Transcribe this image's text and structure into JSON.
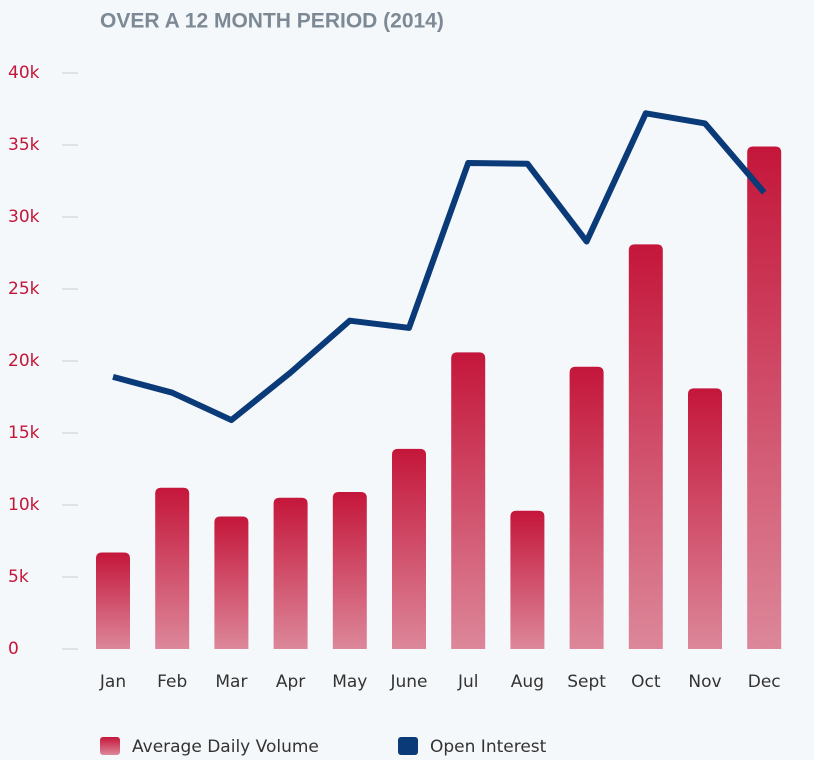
{
  "chart_data": {
    "type": "bar_line",
    "title": "OVER A 12 MONTH PERIOD (2014)",
    "categories": [
      "Jan",
      "Feb",
      "Mar",
      "Apr",
      "May",
      "June",
      "Jul",
      "Aug",
      "Sept",
      "Oct",
      "Nov",
      "Dec"
    ],
    "series": [
      {
        "name": "Average Daily Volume",
        "type": "bar",
        "color": "#c4163a",
        "values": [
          6700,
          11200,
          9200,
          10500,
          10900,
          13900,
          20600,
          9600,
          19600,
          28100,
          18100,
          34900
        ]
      },
      {
        "name": "Open Interest",
        "type": "line",
        "color": "#0a3a78",
        "values": [
          18900,
          17800,
          15900,
          19200,
          22800,
          22300,
          33750,
          33700,
          28300,
          37200,
          36500,
          31700
        ]
      }
    ],
    "ylim": [
      0,
      40000
    ],
    "yticks": [
      0,
      {
        "value": 5000,
        "label": "5k"
      },
      {
        "value": 10000,
        "label": "10k"
      },
      {
        "value": 15000,
        "label": "15k"
      },
      {
        "value": 20000,
        "label": "20k"
      },
      {
        "value": 25000,
        "label": "25k"
      },
      {
        "value": 30000,
        "label": "30k"
      },
      {
        "value": 35000,
        "label": "35k"
      },
      {
        "value": 40000,
        "label": "40k"
      }
    ]
  }
}
